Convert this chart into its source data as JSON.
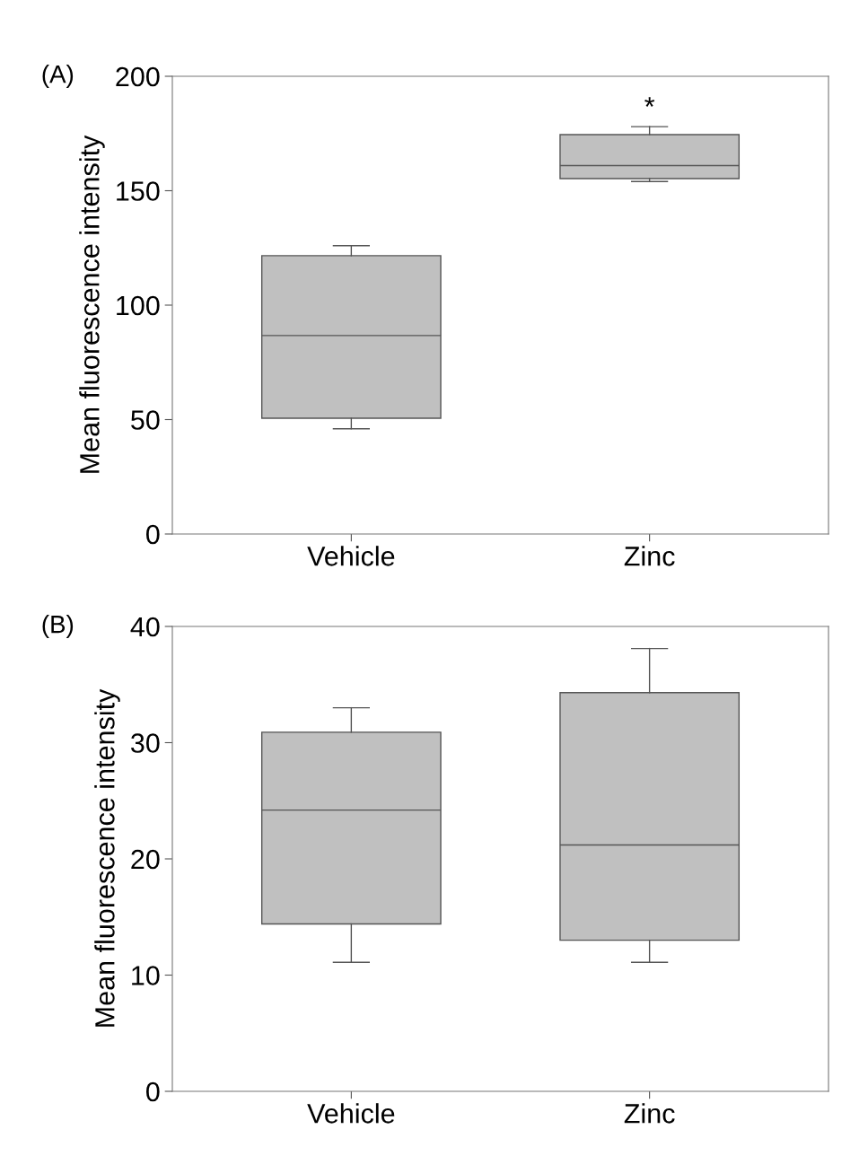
{
  "chart_data": [
    {
      "type": "box",
      "ylabel": "Mean fluorescence intensity",
      "categories": [
        "Vehicle",
        "Zinc"
      ],
      "color": "#c0c0c0",
      "ylim": [
        0,
        200
      ],
      "yticks": [
        0,
        50,
        100,
        150,
        200
      ],
      "grid": false,
      "boxes": [
        {
          "low": 46,
          "q1": 50.6,
          "median": 86.7,
          "q3": 121.6,
          "high": 126
        },
        {
          "low": 154,
          "q1": 155.3,
          "median": 161,
          "q3": 174.5,
          "high": 178
        }
      ],
      "annotations": [
        "(A)",
        "*"
      ]
    },
    {
      "type": "box",
      "ylabel": "Mean fluorescence intensity",
      "categories": [
        "Vehicle",
        "Zinc"
      ],
      "color": "#c0c0c0",
      "ylim": [
        0,
        40
      ],
      "yticks": [
        0,
        10,
        20,
        30,
        40
      ],
      "grid": false,
      "boxes": [
        {
          "low": 11.1,
          "q1": 14.4,
          "median": 24.2,
          "q3": 30.9,
          "high": 33
        },
        {
          "low": 11.1,
          "q1": 13,
          "median": 21.2,
          "q3": 34.3,
          "high": 38.1
        }
      ],
      "annotations": [
        "(B)"
      ]
    }
  ]
}
